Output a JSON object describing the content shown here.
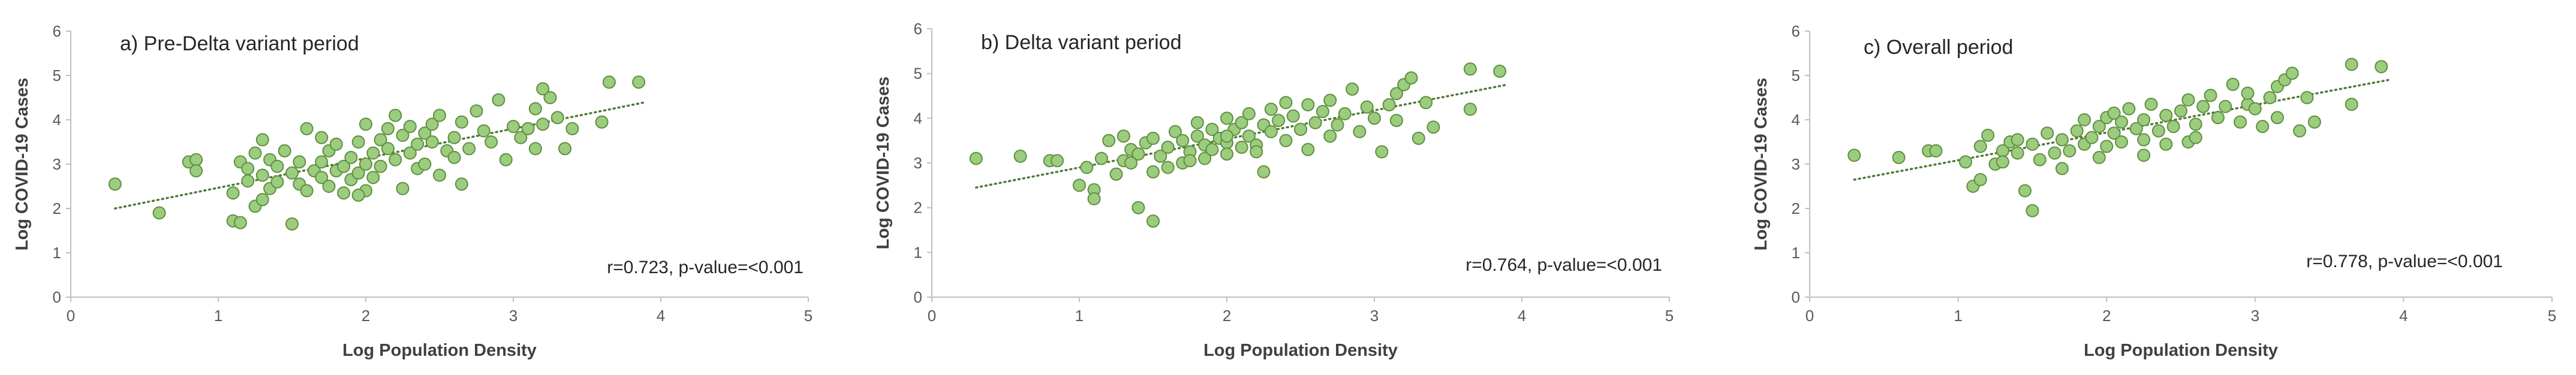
{
  "chart_data": [
    {
      "type": "scatter",
      "title": "a) Pre-Delta variant period",
      "xlabel": "Log Population Density",
      "ylabel": "Log COVID-19 Cases",
      "xlim": [
        0,
        5
      ],
      "ylim": [
        0,
        6
      ],
      "xticks": [
        "0",
        "1",
        "2",
        "3",
        "4",
        "5"
      ],
      "yticks": [
        "0",
        "1",
        "2",
        "3",
        "4",
        "5",
        "6"
      ],
      "annotation": "r=0.723, p-value=<0.001",
      "trendline": [
        [
          0.3,
          2.0
        ],
        [
          3.9,
          4.4
        ]
      ],
      "points": [
        [
          0.3,
          2.55
        ],
        [
          0.6,
          1.9
        ],
        [
          0.8,
          3.05
        ],
        [
          0.85,
          3.1
        ],
        [
          0.85,
          2.85
        ],
        [
          1.1,
          2.35
        ],
        [
          1.1,
          1.72
        ],
        [
          1.15,
          1.68
        ],
        [
          1.15,
          3.05
        ],
        [
          1.2,
          2.9
        ],
        [
          1.2,
          2.62
        ],
        [
          1.25,
          3.25
        ],
        [
          1.25,
          2.05
        ],
        [
          1.3,
          3.55
        ],
        [
          1.3,
          2.75
        ],
        [
          1.35,
          2.45
        ],
        [
          1.35,
          3.1
        ],
        [
          1.4,
          2.6
        ],
        [
          1.4,
          2.95
        ],
        [
          1.45,
          3.3
        ],
        [
          1.5,
          2.8
        ],
        [
          1.5,
          1.65
        ],
        [
          1.55,
          3.05
        ],
        [
          1.55,
          2.55
        ],
        [
          1.6,
          3.8
        ],
        [
          1.6,
          2.4
        ],
        [
          1.65,
          2.85
        ],
        [
          1.7,
          3.05
        ],
        [
          1.7,
          2.7
        ],
        [
          1.75,
          3.3
        ],
        [
          1.75,
          2.5
        ],
        [
          1.8,
          2.85
        ],
        [
          1.8,
          3.45
        ],
        [
          1.85,
          2.35
        ],
        [
          1.85,
          2.95
        ],
        [
          1.9,
          3.15
        ],
        [
          1.9,
          2.65
        ],
        [
          1.95,
          3.5
        ],
        [
          1.95,
          2.8
        ],
        [
          2.0,
          3.9
        ],
        [
          2.0,
          3.0
        ],
        [
          2.0,
          2.4
        ],
        [
          2.05,
          3.25
        ],
        [
          2.05,
          2.7
        ],
        [
          2.1,
          3.55
        ],
        [
          2.1,
          2.95
        ],
        [
          2.15,
          3.8
        ],
        [
          2.15,
          3.35
        ],
        [
          2.2,
          4.1
        ],
        [
          2.2,
          3.1
        ],
        [
          2.25,
          2.45
        ],
        [
          2.25,
          3.65
        ],
        [
          2.3,
          3.25
        ],
        [
          2.35,
          3.45
        ],
        [
          2.35,
          2.9
        ],
        [
          2.4,
          3.7
        ],
        [
          2.4,
          3.0
        ],
        [
          2.45,
          3.9
        ],
        [
          2.45,
          3.5
        ],
        [
          2.5,
          2.75
        ],
        [
          2.5,
          4.1
        ],
        [
          2.55,
          3.3
        ],
        [
          2.6,
          3.6
        ],
        [
          2.65,
          3.95
        ],
        [
          2.65,
          2.55
        ],
        [
          2.7,
          3.35
        ],
        [
          2.75,
          4.2
        ],
        [
          2.8,
          3.75
        ],
        [
          2.85,
          3.5
        ],
        [
          2.9,
          4.45
        ],
        [
          2.95,
          3.1
        ],
        [
          3.0,
          3.85
        ],
        [
          3.05,
          3.6
        ],
        [
          3.1,
          3.8
        ],
        [
          3.15,
          4.25
        ],
        [
          3.15,
          3.35
        ],
        [
          3.2,
          3.9
        ],
        [
          3.25,
          4.5
        ],
        [
          3.3,
          4.05
        ],
        [
          3.35,
          3.35
        ],
        [
          3.4,
          3.8
        ],
        [
          3.6,
          3.95
        ],
        [
          3.65,
          4.85
        ],
        [
          3.85,
          4.85
        ],
        [
          1.7,
          3.6
        ],
        [
          2.3,
          3.85
        ],
        [
          3.2,
          4.7
        ],
        [
          1.3,
          2.2
        ],
        [
          2.6,
          3.15
        ],
        [
          1.95,
          2.3
        ]
      ]
    },
    {
      "type": "scatter",
      "title": "b) Delta variant period",
      "xlabel": "Log Population Density",
      "ylabel": "Log COVID-19 Cases",
      "xlim": [
        0,
        5
      ],
      "ylim": [
        0,
        6
      ],
      "xticks": [
        "0",
        "1",
        "2",
        "3",
        "4",
        "5"
      ],
      "yticks": [
        "0",
        "1",
        "2",
        "3",
        "4",
        "5",
        "6"
      ],
      "annotation": "r=0.764, p-value=<0.001",
      "trendline": [
        [
          0.3,
          2.45
        ],
        [
          3.9,
          4.75
        ]
      ],
      "points": [
        [
          0.3,
          3.1
        ],
        [
          0.6,
          3.15
        ],
        [
          0.8,
          3.05
        ],
        [
          0.85,
          3.05
        ],
        [
          1.0,
          2.5
        ],
        [
          1.05,
          2.9
        ],
        [
          1.1,
          2.4
        ],
        [
          1.1,
          2.2
        ],
        [
          1.15,
          3.1
        ],
        [
          1.2,
          3.5
        ],
        [
          1.25,
          2.75
        ],
        [
          1.3,
          3.05
        ],
        [
          1.3,
          3.6
        ],
        [
          1.35,
          3.3
        ],
        [
          1.4,
          3.2
        ],
        [
          1.4,
          2.0
        ],
        [
          1.45,
          3.45
        ],
        [
          1.5,
          2.8
        ],
        [
          1.5,
          1.7
        ],
        [
          1.55,
          3.15
        ],
        [
          1.6,
          3.35
        ],
        [
          1.6,
          2.9
        ],
        [
          1.65,
          3.7
        ],
        [
          1.7,
          3.0
        ],
        [
          1.7,
          3.5
        ],
        [
          1.75,
          3.25
        ],
        [
          1.8,
          3.6
        ],
        [
          1.8,
          3.9
        ],
        [
          1.85,
          3.1
        ],
        [
          1.85,
          3.4
        ],
        [
          1.9,
          3.75
        ],
        [
          1.9,
          3.3
        ],
        [
          1.95,
          3.55
        ],
        [
          2.0,
          4.0
        ],
        [
          2.0,
          3.45
        ],
        [
          2.0,
          3.2
        ],
        [
          2.05,
          3.75
        ],
        [
          2.1,
          3.35
        ],
        [
          2.1,
          3.9
        ],
        [
          2.15,
          4.1
        ],
        [
          2.15,
          3.6
        ],
        [
          2.2,
          3.4
        ],
        [
          2.25,
          3.85
        ],
        [
          2.25,
          2.8
        ],
        [
          2.3,
          4.2
        ],
        [
          2.3,
          3.7
        ],
        [
          2.35,
          3.95
        ],
        [
          2.4,
          3.5
        ],
        [
          2.45,
          4.05
        ],
        [
          2.5,
          3.75
        ],
        [
          2.55,
          3.3
        ],
        [
          2.55,
          4.3
        ],
        [
          2.6,
          3.9
        ],
        [
          2.65,
          4.15
        ],
        [
          2.7,
          4.4
        ],
        [
          2.75,
          3.85
        ],
        [
          2.8,
          4.1
        ],
        [
          2.85,
          4.65
        ],
        [
          2.9,
          3.7
        ],
        [
          2.95,
          4.25
        ],
        [
          3.0,
          4.0
        ],
        [
          3.05,
          3.25
        ],
        [
          3.1,
          4.3
        ],
        [
          3.15,
          4.55
        ],
        [
          3.15,
          3.95
        ],
        [
          3.2,
          4.75
        ],
        [
          3.25,
          4.9
        ],
        [
          3.3,
          3.55
        ],
        [
          3.35,
          4.35
        ],
        [
          3.4,
          3.8
        ],
        [
          3.65,
          4.2
        ],
        [
          3.65,
          5.1
        ],
        [
          3.85,
          5.05
        ],
        [
          1.5,
          3.55
        ],
        [
          2.2,
          3.25
        ],
        [
          1.75,
          3.05
        ],
        [
          2.4,
          4.35
        ],
        [
          2.0,
          3.6
        ],
        [
          1.35,
          3.0
        ],
        [
          2.7,
          3.6
        ]
      ]
    },
    {
      "type": "scatter",
      "title": "c) Overall period",
      "xlabel": "Log Population Density",
      "ylabel": "Log COVID-19 Cases",
      "xlim": [
        0,
        5
      ],
      "ylim": [
        0,
        6
      ],
      "xticks": [
        "0",
        "1",
        "2",
        "3",
        "4",
        "5"
      ],
      "yticks": [
        "0",
        "1",
        "2",
        "3",
        "4",
        "5",
        "6"
      ],
      "annotation": "r=0.778, p-value=<0.001",
      "trendline": [
        [
          0.3,
          2.65
        ],
        [
          3.9,
          4.9
        ]
      ],
      "points": [
        [
          0.3,
          3.2
        ],
        [
          0.6,
          3.15
        ],
        [
          0.8,
          3.3
        ],
        [
          0.85,
          3.3
        ],
        [
          1.05,
          3.05
        ],
        [
          1.1,
          2.5
        ],
        [
          1.15,
          2.65
        ],
        [
          1.15,
          3.4
        ],
        [
          1.2,
          3.65
        ],
        [
          1.25,
          3.0
        ],
        [
          1.3,
          3.3
        ],
        [
          1.35,
          3.5
        ],
        [
          1.4,
          3.25
        ],
        [
          1.45,
          2.4
        ],
        [
          1.5,
          1.95
        ],
        [
          1.5,
          3.45
        ],
        [
          1.55,
          3.1
        ],
        [
          1.6,
          3.7
        ],
        [
          1.65,
          3.25
        ],
        [
          1.7,
          3.55
        ],
        [
          1.75,
          3.3
        ],
        [
          1.8,
          3.75
        ],
        [
          1.85,
          3.45
        ],
        [
          1.85,
          4.0
        ],
        [
          1.9,
          3.6
        ],
        [
          1.95,
          3.85
        ],
        [
          2.0,
          3.4
        ],
        [
          2.0,
          4.05
        ],
        [
          2.05,
          3.7
        ],
        [
          2.1,
          3.5
        ],
        [
          2.1,
          3.95
        ],
        [
          2.15,
          4.25
        ],
        [
          2.2,
          3.8
        ],
        [
          2.25,
          3.2
        ],
        [
          2.25,
          4.0
        ],
        [
          2.3,
          4.35
        ],
        [
          2.35,
          3.75
        ],
        [
          2.4,
          4.1
        ],
        [
          2.45,
          3.85
        ],
        [
          2.5,
          4.2
        ],
        [
          2.55,
          3.5
        ],
        [
          2.55,
          4.45
        ],
        [
          2.6,
          3.9
        ],
        [
          2.65,
          4.3
        ],
        [
          2.7,
          4.55
        ],
        [
          2.75,
          4.05
        ],
        [
          2.8,
          4.3
        ],
        [
          2.85,
          4.8
        ],
        [
          2.9,
          3.95
        ],
        [
          2.95,
          4.35
        ],
        [
          3.0,
          4.25
        ],
        [
          3.05,
          3.85
        ],
        [
          3.1,
          4.5
        ],
        [
          3.15,
          4.75
        ],
        [
          3.15,
          4.05
        ],
        [
          3.2,
          4.9
        ],
        [
          3.25,
          5.05
        ],
        [
          3.3,
          3.75
        ],
        [
          3.35,
          4.5
        ],
        [
          3.4,
          3.95
        ],
        [
          3.65,
          4.35
        ],
        [
          3.65,
          5.25
        ],
        [
          3.85,
          5.2
        ],
        [
          1.95,
          3.15
        ],
        [
          2.25,
          3.55
        ],
        [
          1.4,
          3.55
        ],
        [
          2.05,
          4.15
        ],
        [
          1.7,
          2.9
        ],
        [
          2.6,
          3.6
        ],
        [
          2.95,
          4.6
        ],
        [
          1.3,
          3.05
        ],
        [
          2.4,
          3.45
        ]
      ]
    }
  ]
}
